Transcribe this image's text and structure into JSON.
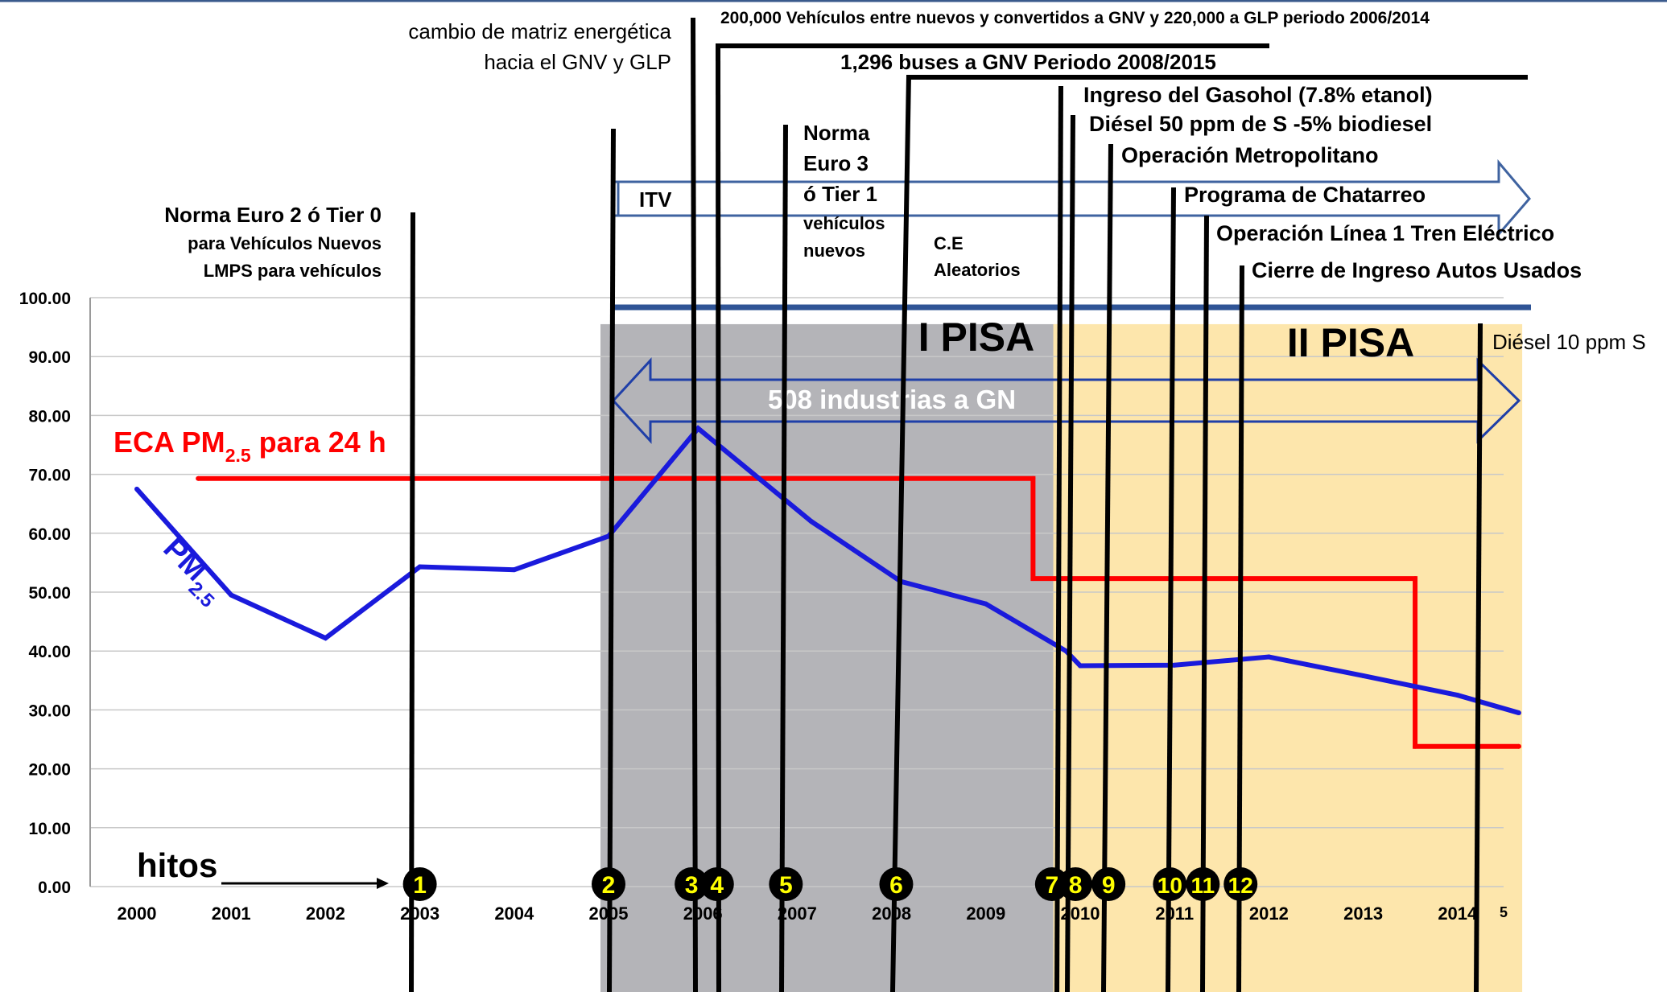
{
  "chart_data": {
    "type": "line",
    "x": [
      "2000",
      "2001",
      "2002",
      "2003",
      "2004",
      "2005",
      "2006",
      "2007",
      "2008",
      "2009",
      "2010",
      "2011",
      "2012",
      "2013",
      "2014"
    ],
    "ylim": [
      0,
      100
    ],
    "yticks": [
      "0.00",
      "10.00",
      "20.00",
      "30.00",
      "40.00",
      "50.00",
      "60.00",
      "70.00",
      "80.00",
      "90.00",
      "100.00"
    ],
    "series": [
      {
        "name": "PM2.5",
        "label_main": "PM",
        "label_sub": "2.5",
        "color": "#1a1adc",
        "points": [
          [
            2000.0,
            67.5
          ],
          [
            2001.0,
            49.5
          ],
          [
            2002.0,
            42.2
          ],
          [
            2003.0,
            54.3
          ],
          [
            2004.0,
            53.8
          ],
          [
            2005.0,
            59.5
          ],
          [
            2005.95,
            77.8
          ],
          [
            2007.15,
            62.0
          ],
          [
            2008.1,
            51.8
          ],
          [
            2009.0,
            48.0
          ],
          [
            2009.85,
            40.0
          ],
          [
            2010.0,
            37.5
          ],
          [
            2011.0,
            37.6
          ],
          [
            2012.0,
            39.0
          ],
          [
            2013.0,
            35.8
          ],
          [
            2014.0,
            32.5
          ],
          [
            2014.65,
            29.5
          ]
        ]
      },
      {
        "name": "ECA PM2.5 para 24 h",
        "label_main": "ECA PM",
        "label_sub": "2.5",
        "label_tail": " para 24 h",
        "color": "#ff0000",
        "points": [
          [
            2000.65,
            69.3
          ],
          [
            2009.5,
            69.3
          ],
          [
            2009.5,
            52.3
          ],
          [
            2013.55,
            52.3
          ],
          [
            2013.55,
            23.8
          ],
          [
            2014.65,
            23.8
          ]
        ]
      }
    ],
    "regions": [
      {
        "label": "I PISA",
        "x0": 2005.0,
        "x1": 2009.8,
        "y_top": 95.5,
        "color": "#b4b4b8"
      },
      {
        "label": "II PISA",
        "x0": 2009.8,
        "x1": 2014.6,
        "y_top": 95.5,
        "color": "#fde6ac"
      }
    ],
    "annotations": [
      {
        "text": "508 industrias a GN",
        "x0": 2005.0,
        "x1": 2014.6,
        "y": 82
      },
      {
        "text": "ITV",
        "x0": 2005.0,
        "x1": 2014.6,
        "y": 121
      }
    ],
    "hitos_label": "hitos",
    "milestones": [
      {
        "n": "1",
        "x": 2003.0
      },
      {
        "n": "2",
        "x": 2005.0
      },
      {
        "n": "3",
        "x": 2005.88
      },
      {
        "n": "4",
        "x": 2006.15
      },
      {
        "n": "5",
        "x": 2006.88
      },
      {
        "n": "6",
        "x": 2008.05
      },
      {
        "n": "7",
        "x": 2009.7
      },
      {
        "n": "8",
        "x": 2009.95
      },
      {
        "n": "9",
        "x": 2010.3
      },
      {
        "n": "10",
        "x": 2010.95
      },
      {
        "n": "11",
        "x": 2011.3
      },
      {
        "n": "12",
        "x": 2011.7
      }
    ],
    "page_number": "5"
  },
  "event_labels": {
    "euro2": [
      "Norma Euro 2 ó Tier 0",
      "para Vehículos  Nuevos",
      "LMPS para vehículos"
    ],
    "matriz": [
      "cambio de matriz energética",
      "hacia el GNV y GLP"
    ],
    "vehiculos": "200,000 Vehículos entre nuevos y  convertidos a GNV y 220,000 a GLP periodo 2006/2014",
    "buses": "1,296 buses a GNV Periodo 2008/2015",
    "euro3": [
      "Norma",
      "Euro 3",
      "ó Tier 1",
      "vehículos",
      "nuevos"
    ],
    "ce": [
      "C.E",
      "Aleatorios"
    ],
    "gasohol": "Ingreso del Gasohol (7.8% etanol)",
    "diesel50": "Diésel 50 ppm de S -5% biodiesel",
    "metropolitano": "Operación Metropolitano",
    "chatarreo": "Programa de  Chatarreo",
    "tren": "Operación Línea 1 Tren Eléctrico",
    "cierre": "Cierre de  Ingreso Autos Usados",
    "diesel10": "Diésel 10 ppm  S"
  }
}
